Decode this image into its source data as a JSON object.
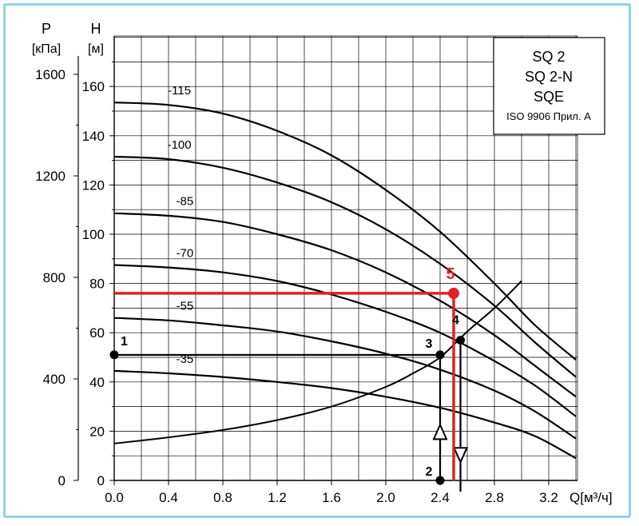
{
  "chart_data": {
    "type": "line",
    "xlabel": "Q[м³/ч]",
    "y_head_label": "H",
    "y_head_unit": "[м]",
    "y_pressure_label": "P",
    "y_pressure_unit": "[кПа]",
    "xlim": [
      0,
      3.4
    ],
    "ylim": [
      0,
      170
    ],
    "x_ticks": [
      "0.0",
      "0.4",
      "0.8",
      "1.2",
      "1.6",
      "2.0",
      "2.4",
      "2.8",
      "3.2"
    ],
    "x_tick_values": [
      0,
      0.4,
      0.8,
      1.2,
      1.6,
      2.0,
      2.4,
      2.8,
      3.2
    ],
    "y_ticks": [
      "0",
      "20",
      "40",
      "60",
      "80",
      "100",
      "120",
      "140",
      "160"
    ],
    "y_tick_values": [
      0,
      20,
      40,
      60,
      80,
      100,
      120,
      140,
      160
    ],
    "p_ticks": [
      "0",
      "400",
      "800",
      "1200",
      "1600"
    ],
    "p_tick_values": [
      0,
      400,
      800,
      1200,
      1600
    ],
    "grid": true,
    "legend_box": {
      "lines": [
        "SQ 2",
        "SQ 2-N",
        "SQE"
      ],
      "note": "ISO 9906 Прил. А"
    },
    "series": [
      {
        "name": "-115",
        "x": [
          0,
          0.4,
          0.8,
          1.2,
          1.6,
          2.0,
          2.4,
          2.8,
          3.1,
          3.4
        ],
        "y": [
          153.5,
          152.5,
          149,
          142,
          132,
          118,
          101,
          80,
          63,
          49
        ]
      },
      {
        "name": "-100",
        "x": [
          0,
          0.4,
          0.8,
          1.2,
          1.6,
          2.0,
          2.4,
          2.8,
          3.1,
          3.4
        ],
        "y": [
          131.5,
          130.5,
          127,
          121,
          113,
          102,
          88,
          71,
          56,
          42
        ]
      },
      {
        "name": "-85",
        "x": [
          0,
          0.4,
          0.8,
          1.2,
          1.6,
          2.0,
          2.4,
          2.8,
          3.1,
          3.4
        ],
        "y": [
          108.5,
          107.5,
          105,
          100,
          93.5,
          84.5,
          73,
          59,
          46.5,
          34
        ]
      },
      {
        "name": "-70",
        "x": [
          0,
          0.4,
          0.8,
          1.2,
          1.6,
          2.0,
          2.4,
          2.8,
          3.1,
          3.4
        ],
        "y": [
          87.5,
          86.5,
          84.5,
          81,
          75.5,
          68.5,
          60,
          48.5,
          38.5,
          26
        ]
      },
      {
        "name": "-55",
        "x": [
          0,
          0.4,
          0.8,
          1.2,
          1.6,
          2.0,
          2.4,
          2.8,
          3.1,
          3.4
        ],
        "y": [
          66,
          65,
          63,
          60.5,
          56.5,
          51.5,
          45,
          36.5,
          28,
          17
        ]
      },
      {
        "name": "-35",
        "x": [
          0,
          0.4,
          0.8,
          1.2,
          1.6,
          2.0,
          2.4,
          2.8,
          3.1,
          3.4
        ],
        "y": [
          44.5,
          43.5,
          42,
          40,
          37.5,
          34,
          29.5,
          23.5,
          18,
          9
        ]
      }
    ],
    "system_curve": {
      "x": [
        0,
        0.4,
        0.8,
        1.2,
        1.6,
        2.0,
        2.2,
        2.4,
        2.6,
        2.8,
        3.0
      ],
      "y": [
        15,
        17.5,
        20.5,
        24.5,
        30,
        38,
        43.5,
        50,
        60.5,
        70,
        81
      ]
    },
    "points": [
      {
        "label": "1",
        "x": 0,
        "y": 51
      },
      {
        "label": "2",
        "x": 2.4,
        "y": 0
      },
      {
        "label": "3",
        "x": 2.4,
        "y": 51
      },
      {
        "label": "4",
        "x": 2.55,
        "y": 57
      },
      {
        "label": "5",
        "x": 2.5,
        "y": 76
      }
    ],
    "colors": {
      "curves": "#000000",
      "grid": "#000000",
      "highlight": "#e02027",
      "frame": "#8fd3ea"
    }
  }
}
